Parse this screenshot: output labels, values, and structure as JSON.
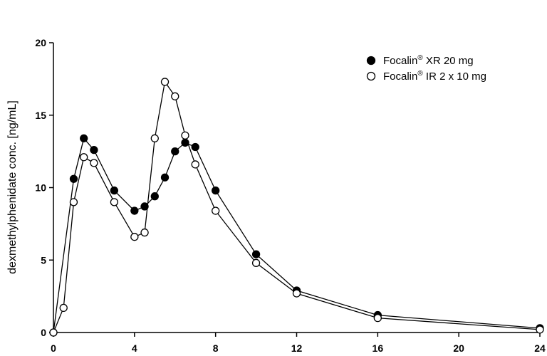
{
  "chart_data": {
    "type": "line",
    "title": "",
    "xlabel": "",
    "ylabel": "dexmethylphenidate conc. [ng/mL]",
    "xlim": [
      0,
      24
    ],
    "ylim": [
      0,
      20
    ],
    "xticks": [
      0,
      4,
      8,
      12,
      16,
      20,
      24
    ],
    "yticks": [
      0,
      5,
      10,
      15,
      20
    ],
    "grid": false,
    "legend_position": "top-right",
    "series": [
      {
        "name_parts": {
          "brand": "Focalin",
          "mark": "®",
          "rest": " XR 20 mg"
        },
        "marker": "filled-circle",
        "color": "#000000",
        "x": [
          0,
          1,
          1.5,
          2,
          3,
          4,
          4.5,
          5,
          5.5,
          6,
          6.5,
          7,
          8,
          10,
          12,
          16,
          24
        ],
        "y": [
          0,
          10.6,
          13.4,
          12.6,
          9.8,
          8.4,
          8.7,
          9.4,
          10.7,
          12.5,
          13.1,
          12.8,
          9.8,
          5.4,
          2.9,
          1.2,
          0.3
        ]
      },
      {
        "name_parts": {
          "brand": "Focalin",
          "mark": "®",
          "rest": " IR 2 x 10 mg"
        },
        "marker": "open-circle",
        "color": "#000000",
        "x": [
          0,
          0.5,
          1,
          1.5,
          2,
          3,
          4,
          4.5,
          5,
          5.5,
          6,
          6.5,
          7,
          8,
          10,
          12,
          16,
          24
        ],
        "y": [
          0,
          1.7,
          9.0,
          12.1,
          11.7,
          9.0,
          6.6,
          6.9,
          13.4,
          17.3,
          16.3,
          13.6,
          11.6,
          8.4,
          4.8,
          2.7,
          1.0,
          0.2
        ]
      }
    ]
  }
}
